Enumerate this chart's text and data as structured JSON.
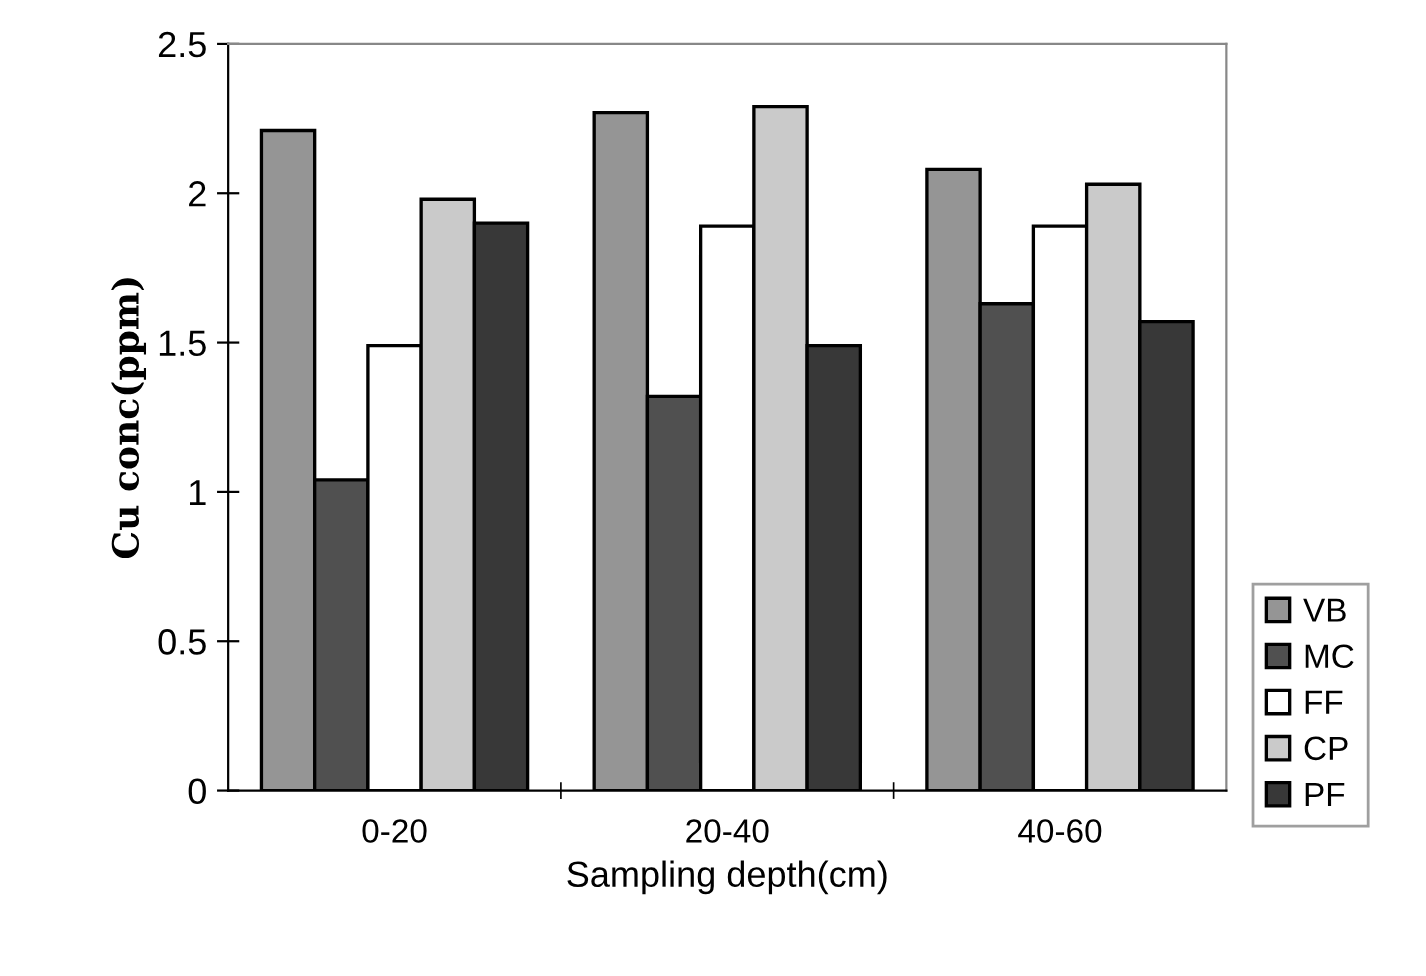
{
  "chart_data": {
    "type": "bar",
    "xlabel": "Sampling depth(cm)",
    "ylabel": "Cu conc(ppm)",
    "categories": [
      "0-20",
      "20-40",
      "40-60"
    ],
    "series": [
      {
        "name": "VB",
        "color": "#959595",
        "values": [
          2.21,
          2.27,
          2.08
        ]
      },
      {
        "name": "MC",
        "color": "#505050",
        "values": [
          1.04,
          1.32,
          1.63
        ]
      },
      {
        "name": "FF",
        "color": "#ffffff",
        "values": [
          1.49,
          1.89,
          1.89
        ]
      },
      {
        "name": "CP",
        "color": "#cacaca",
        "values": [
          1.98,
          2.29,
          2.03
        ]
      },
      {
        "name": "PF",
        "color": "#383838",
        "values": [
          1.9,
          1.49,
          1.57
        ]
      }
    ],
    "ylim": [
      0,
      2.5
    ],
    "yticks": [
      0,
      0.5,
      1,
      1.5,
      2,
      2.5
    ],
    "grid": false,
    "legend": "bottom right"
  }
}
